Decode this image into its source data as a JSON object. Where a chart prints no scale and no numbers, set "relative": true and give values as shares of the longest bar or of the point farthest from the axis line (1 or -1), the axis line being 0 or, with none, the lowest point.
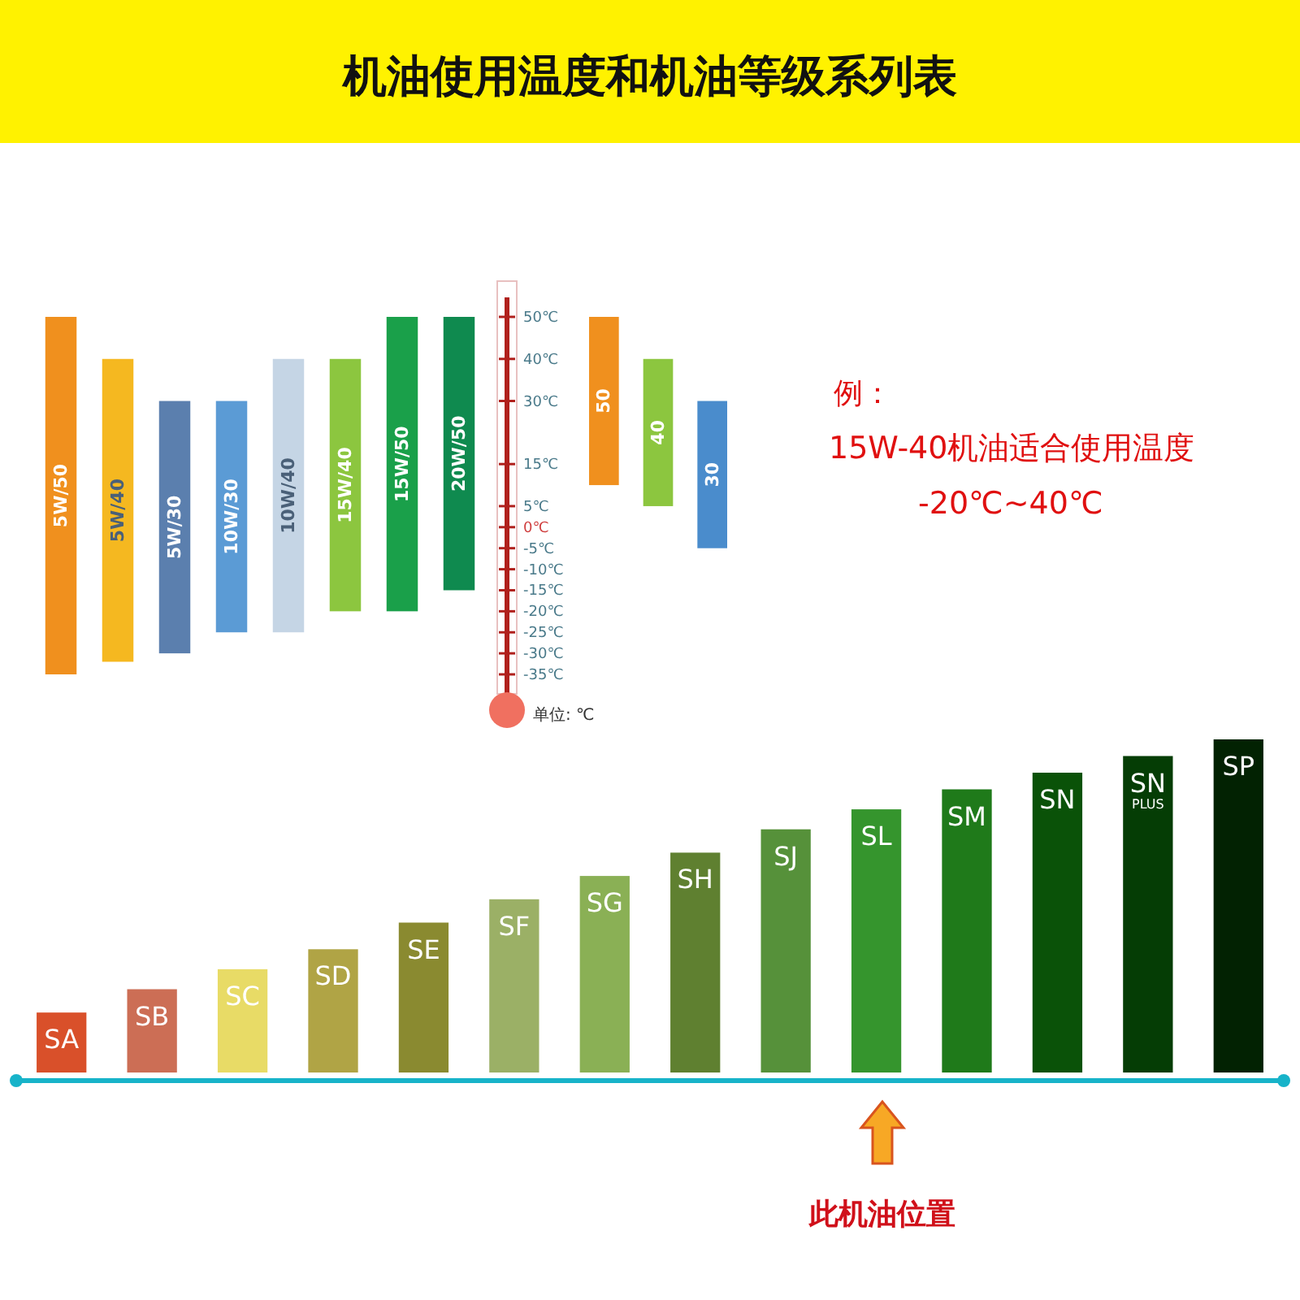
{
  "chart_data": [
    {
      "type": "bar",
      "title": "机油使用温度和机油等级系列表",
      "ylabel": "单位: ℃",
      "categories": [
        "5W/50",
        "5W/40",
        "5W/30",
        "10W/30",
        "10W/40",
        "15W/40",
        "15W/50",
        "20W/50"
      ],
      "base": [
        -35,
        -32,
        -30,
        -25,
        -25,
        -20,
        -20,
        -15
      ],
      "values": [
        85,
        72,
        60,
        55,
        65,
        60,
        70,
        65
      ],
      "colors": [
        "#f0901e",
        "#f5b820",
        "#5b7fae",
        "#5b9bd5",
        "#c5d5e5",
        "#8cc63f",
        "#1aa04a",
        "#0f8a4f"
      ],
      "ylim": [
        -35,
        50
      ],
      "yticks": [
        {
          "value": 50,
          "label": "50℃"
        },
        {
          "value": 40,
          "label": "40℃"
        },
        {
          "value": 30,
          "label": "30℃"
        },
        {
          "value": 15,
          "label": "15℃"
        },
        {
          "value": 5,
          "label": "5℃"
        },
        {
          "value": 0,
          "label": "0℃"
        },
        {
          "value": -5,
          "label": "-5℃"
        },
        {
          "value": -10,
          "label": "-10℃"
        },
        {
          "value": -15,
          "label": "-15℃"
        },
        {
          "value": -20,
          "label": "-20℃"
        },
        {
          "value": -25,
          "label": "-25℃"
        },
        {
          "value": -30,
          "label": "-30℃"
        },
        {
          "value": -35,
          "label": "-35℃"
        }
      ],
      "annotations": [
        "例：",
        "15W-40机油适合使用温度",
        "-20℃~40℃"
      ]
    },
    {
      "type": "bar",
      "categories": [
        "50",
        "40",
        "30"
      ],
      "base": [
        10,
        5,
        -5
      ],
      "values": [
        40,
        35,
        35
      ],
      "colors": [
        "#f0901e",
        "#8cc63f",
        "#4a8ccc"
      ],
      "ylim": [
        -35,
        50
      ],
      "tick_labels": false
    },
    {
      "type": "bar",
      "relative": true,
      "categories": [
        "SA",
        "SB",
        "SC",
        "SD",
        "SE",
        "SF",
        "SG",
        "SH",
        "SJ",
        "SL",
        "SM",
        "SN",
        "SN PLUS",
        "SP"
      ],
      "values": [
        0.18,
        0.25,
        0.31,
        0.37,
        0.45,
        0.52,
        0.59,
        0.66,
        0.73,
        0.79,
        0.85,
        0.9,
        0.95,
        1
      ],
      "colors": [
        "#d9502a",
        "#cc6e55",
        "#e8db66",
        "#b0a445",
        "#8a8a30",
        "#9bb066",
        "#8ab055",
        "#5f8030",
        "#56913a",
        "#35952d",
        "#1f7a1a",
        "#0a5208",
        "#053d05",
        "#022202"
      ],
      "annotations": [
        "此机油位置"
      ]
    }
  ]
}
